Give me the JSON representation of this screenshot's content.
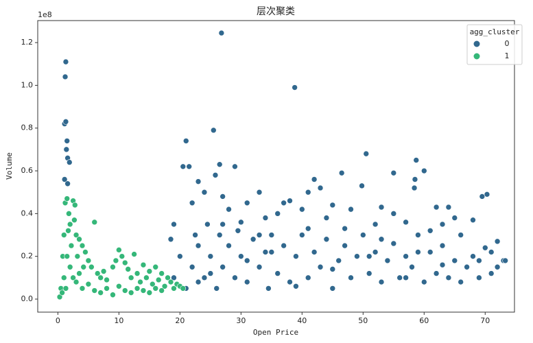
{
  "chart_data": {
    "type": "scatter",
    "title": "层次聚类",
    "xlabel": "Open Price",
    "ylabel": "Volume",
    "y_offset_label": "1e8",
    "legend_title": "agg_cluster",
    "legend": "upper right",
    "xlim": [
      -3.3,
      74.8
    ],
    "xticks": [
      0,
      10,
      20,
      30,
      40,
      50,
      60,
      70
    ],
    "ylim": [
      -0.061,
      1.303
    ],
    "yticks": [
      {
        "value": 0,
        "label": "0.0"
      },
      0.2,
      0.4,
      0.6,
      0.8,
      {
        "value": 1,
        "label": "1.0"
      },
      1.2
    ],
    "series": [
      {
        "name": "0",
        "color": "#31688e",
        "x": [
          1.2,
          1.3,
          1.1,
          1.3,
          1.5,
          1.4,
          1.6,
          1.9,
          1.1,
          1.6,
          26.8,
          38.8,
          25.5,
          21,
          20.5,
          21.5,
          26.5,
          29,
          25.8,
          50.5,
          58.7,
          60,
          58.5,
          55,
          46.5,
          49.8,
          58.4,
          42,
          70.3,
          69.5,
          37,
          38,
          41,
          43,
          33,
          23,
          24,
          27,
          62,
          64,
          65,
          68,
          72,
          73,
          71,
          66,
          63,
          61,
          57,
          55,
          53,
          52,
          48,
          45,
          44,
          40,
          36,
          34,
          31,
          30,
          28,
          22,
          19,
          18.5,
          19,
          20,
          21,
          22,
          22.5,
          23,
          24,
          24.5,
          25,
          26,
          26.5,
          27,
          28,
          29,
          29.5,
          30,
          31,
          32,
          33,
          34,
          34.5,
          35,
          36,
          37,
          38,
          39,
          40,
          41,
          42,
          43,
          44,
          45,
          46,
          47,
          48,
          49,
          50,
          51,
          52,
          53,
          54,
          55,
          56,
          57,
          58,
          59,
          60,
          61,
          62,
          63,
          64,
          65,
          66,
          67,
          68,
          69,
          70,
          71,
          72,
          73.3,
          25,
          31,
          35,
          39,
          45,
          51,
          57,
          63,
          69,
          23,
          27,
          33,
          41,
          47,
          53,
          59
        ],
        "values": [
          1.04,
          1.11,
          0.82,
          0.83,
          0.74,
          0.7,
          0.66,
          0.64,
          0.56,
          0.54,
          1.245,
          0.99,
          0.79,
          0.74,
          0.62,
          0.62,
          0.63,
          0.62,
          0.58,
          0.68,
          0.65,
          0.6,
          0.56,
          0.59,
          0.59,
          0.53,
          0.52,
          0.56,
          0.49,
          0.48,
          0.45,
          0.46,
          0.5,
          0.52,
          0.5,
          0.55,
          0.5,
          0.48,
          0.43,
          0.43,
          0.38,
          0.37,
          0.27,
          0.18,
          0.22,
          0.3,
          0.35,
          0.32,
          0.36,
          0.4,
          0.43,
          0.35,
          0.42,
          0.44,
          0.38,
          0.42,
          0.4,
          0.38,
          0.45,
          0.36,
          0.42,
          0.45,
          0.35,
          0.28,
          0.1,
          0.2,
          0.05,
          0.15,
          0.3,
          0.25,
          0.1,
          0.35,
          0.2,
          0.05,
          0.3,
          0.15,
          0.25,
          0.1,
          0.32,
          0.2,
          0.08,
          0.28,
          0.15,
          0.22,
          0.05,
          0.3,
          0.12,
          0.25,
          0.08,
          0.2,
          0.3,
          0.1,
          0.22,
          0.15,
          0.28,
          0.05,
          0.18,
          0.25,
          0.1,
          0.2,
          0.3,
          0.12,
          0.22,
          0.08,
          0.18,
          0.26,
          0.1,
          0.2,
          0.15,
          0.3,
          0.08,
          0.22,
          0.12,
          0.25,
          0.1,
          0.18,
          0.08,
          0.15,
          0.2,
          0.1,
          0.24,
          0.12,
          0.15,
          0.18,
          0.12,
          0.18,
          0.22,
          0.06,
          0.14,
          0.2,
          0.1,
          0.16,
          0.18,
          0.08,
          0.35,
          0.3,
          0.33,
          0.33,
          0.28,
          0.22
        ]
      },
      {
        "name": "1",
        "color": "#35b779",
        "x": [
          0.5,
          0.8,
          1,
          1.2,
          1.5,
          1.8,
          2,
          2.5,
          2.8,
          3,
          3.5,
          4,
          4.5,
          5,
          5.5,
          6,
          6.5,
          7,
          7.5,
          8,
          9,
          9.5,
          10,
          10.5,
          11,
          11.5,
          12,
          12.5,
          13,
          13.5,
          14,
          14.5,
          15,
          15.5,
          16,
          16.5,
          17,
          17.5,
          18,
          18.5,
          19,
          19.5,
          20,
          20.5,
          1,
          1.5,
          2,
          2.5,
          3,
          3.5,
          4,
          5,
          6,
          7,
          8,
          9,
          10,
          11,
          12,
          13,
          14,
          15,
          16,
          17,
          0.3,
          0.7,
          1.3,
          2.2,
          3.2,
          4.2,
          1.7,
          2.7
        ],
        "values": [
          0.05,
          0.2,
          0.3,
          0.45,
          0.47,
          0.4,
          0.35,
          0.46,
          0.44,
          0.3,
          0.28,
          0.25,
          0.22,
          0.18,
          0.15,
          0.36,
          0.12,
          0.1,
          0.13,
          0.09,
          0.15,
          0.18,
          0.23,
          0.2,
          0.17,
          0.14,
          0.1,
          0.21,
          0.12,
          0.08,
          0.16,
          0.1,
          0.13,
          0.07,
          0.15,
          0.09,
          0.12,
          0.06,
          0.1,
          0.08,
          0.05,
          0.07,
          0.06,
          0.05,
          0.1,
          0.2,
          0.15,
          0.1,
          0.08,
          0.12,
          0.05,
          0.07,
          0.04,
          0.03,
          0.05,
          0.02,
          0.06,
          0.04,
          0.03,
          0.05,
          0.04,
          0.03,
          0.05,
          0.04,
          0.01,
          0.03,
          0.05,
          0.25,
          0.2,
          0.15,
          0.32,
          0.37
        ]
      }
    ]
  }
}
